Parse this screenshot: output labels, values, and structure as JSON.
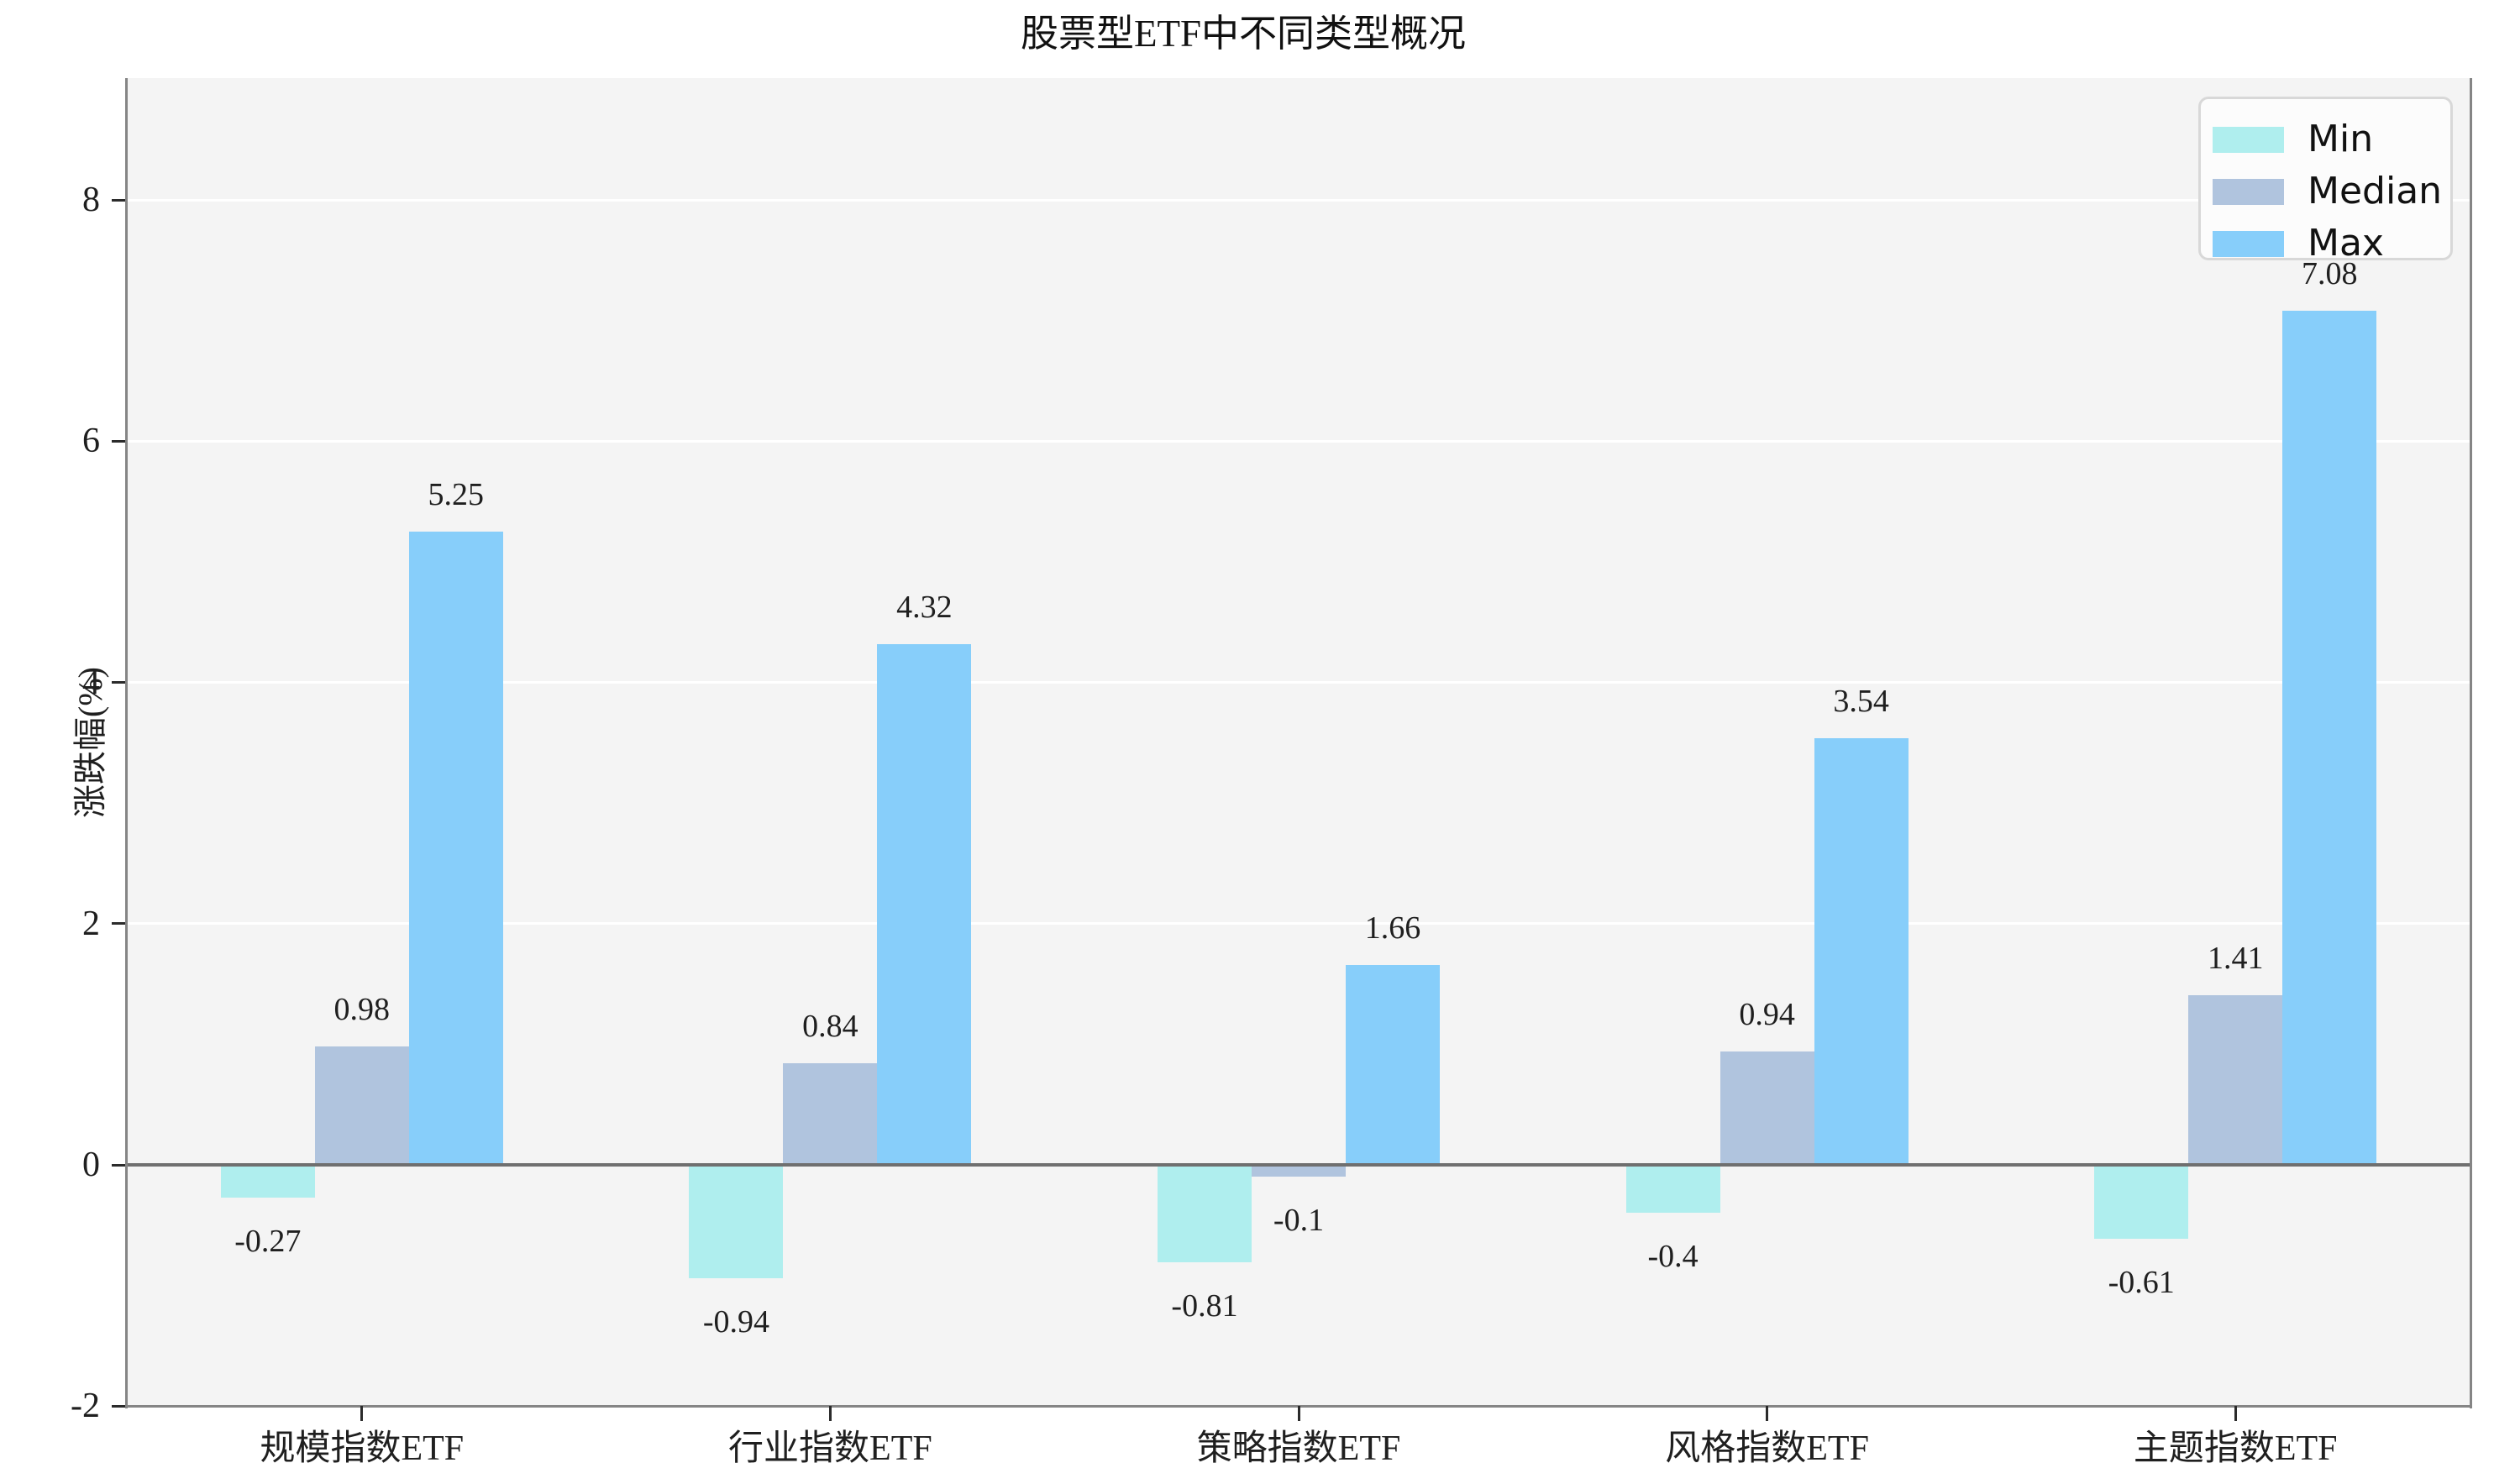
{
  "chart_data": {
    "type": "bar",
    "title": "股票型ETF中不同类型概况",
    "xlabel": "",
    "ylabel": "涨跌幅(%)",
    "categories": [
      "规模指数ETF",
      "行业指数ETF",
      "策略指数ETF",
      "风格指数ETF",
      "主题指数ETF"
    ],
    "series": [
      {
        "name": "Min",
        "color": "#AFEEEE",
        "values": [
          -0.27,
          -0.94,
          -0.81,
          -0.4,
          -0.61
        ]
      },
      {
        "name": "Median",
        "color": "#B0C4DE",
        "values": [
          0.98,
          0.84,
          -0.1,
          0.94,
          1.41
        ]
      },
      {
        "name": "Max",
        "color": "#87CEFA",
        "values": [
          5.25,
          4.32,
          1.66,
          3.54,
          7.08
        ]
      }
    ],
    "bar_value_labels": true,
    "y_ticks": [
      -2,
      0,
      2,
      4,
      6,
      8
    ],
    "ylim": [
      -2,
      9.01
    ],
    "grid": "horizontal white lines on",
    "zero_line": true,
    "legend": {
      "position": "upper right",
      "entries": [
        "Min",
        "Median",
        "Max"
      ]
    }
  },
  "style": {
    "plot_background": "#f4f4f4",
    "figure_background": "#ffffff",
    "grid_color": "#ffffff",
    "spine_color": "#858585",
    "zero_line_color": "#6f6f6f",
    "text_color": "#1f1f1f",
    "legend_background": "#fcfcfc",
    "legend_border": "#d8d8d8"
  }
}
